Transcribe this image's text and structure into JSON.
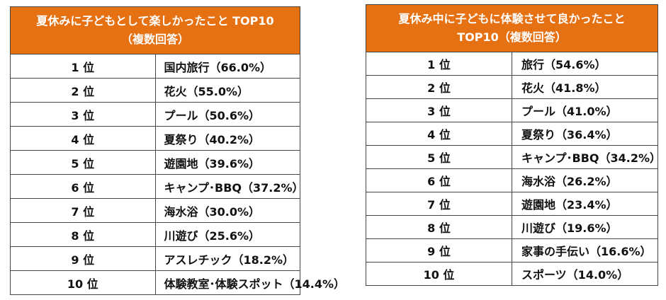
{
  "left_table": {
    "title_line1": "夏休みに子どもとして楽しかったこと TOP10",
    "title_line2": "（複数回答）",
    "rows": [
      {
        "rank": "1 位",
        "item": "国内旅行（66.0%）"
      },
      {
        "rank": "2 位",
        "item": "花火（55.0%）"
      },
      {
        "rank": "3 位",
        "item": "プール（50.6%）"
      },
      {
        "rank": "4 位",
        "item": "夏祭り（40.2%）"
      },
      {
        "rank": "5 位",
        "item": "遊園地（39.6%）"
      },
      {
        "rank": "6 位",
        "item": "キャンプ･BBQ（37.2%）"
      },
      {
        "rank": "7 位",
        "item": "海水浴（30.0%）"
      },
      {
        "rank": "8 位",
        "item": "川遊び（25.6%）"
      },
      {
        "rank": "9 位",
        "item": "アスレチック（18.2%）"
      },
      {
        "rank": "10 位",
        "item": "体験教室･体験スポット（14.4%）"
      }
    ]
  },
  "right_table": {
    "title_line1": "夏休み中に子どもに体験させて良かったこと",
    "title_line2": "TOP10（複数回答）",
    "rows": [
      {
        "rank": "1 位",
        "item": "旅行（54.6%）"
      },
      {
        "rank": "2 位",
        "item": "花火（41.8%）"
      },
      {
        "rank": "3 位",
        "item": "プール（41.0%）"
      },
      {
        "rank": "4 位",
        "item": "夏祭り（36.4%）"
      },
      {
        "rank": "5 位",
        "item": "キャンプ･BBQ（34.2%）"
      },
      {
        "rank": "6 位",
        "item": "海水浴（26.2%）"
      },
      {
        "rank": "7 位",
        "item": "遊園地（23.4%）"
      },
      {
        "rank": "8 位",
        "item": "川遊び（19.6%）"
      },
      {
        "rank": "9 位",
        "item": "家事の手伝い（16.6%）"
      },
      {
        "rank": "10 位",
        "item": "スポーツ（14.0%）"
      }
    ]
  },
  "colors": {
    "header_bg": "#e67113",
    "header_text": "#ffffff",
    "border": "#444444"
  }
}
